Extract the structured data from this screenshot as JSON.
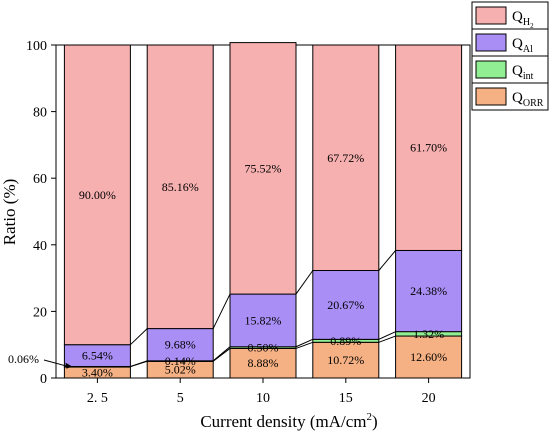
{
  "chart_data": {
    "type": "bar",
    "stacked": true,
    "categories": [
      "2. 5",
      "5",
      "10",
      "15",
      "20"
    ],
    "series": [
      {
        "key": "orr",
        "name_main": "Q",
        "name_sub": "ORR",
        "color": "#F5B183",
        "values": [
          3.4,
          5.02,
          8.88,
          10.72,
          12.6
        ],
        "labels": [
          "3.40%",
          "5.02%",
          "8.88%",
          "10.72%",
          "12.60%"
        ]
      },
      {
        "key": "int",
        "name_main": "Q",
        "name_sub": "int",
        "color": "#92EE92",
        "values": [
          0.06,
          0.14,
          0.5,
          0.89,
          1.32
        ],
        "labels": [
          "",
          "0.14%",
          "0.50%",
          "0.89%",
          "1.32%"
        ]
      },
      {
        "key": "al",
        "name_main": "Q",
        "name_sub": "Al",
        "color": "#A98FF5",
        "values": [
          6.54,
          9.68,
          15.82,
          20.67,
          24.38
        ],
        "labels": [
          "6.54%",
          "9.68%",
          "15.82%",
          "20.67%",
          "24.38%"
        ]
      },
      {
        "key": "h2",
        "name_main": "Q",
        "name_sub": "H",
        "name_subsub": "2",
        "color": "#F7B0B0",
        "values": [
          90.0,
          85.16,
          75.52,
          67.72,
          61.7
        ],
        "labels": [
          "90.00%",
          "85.16%",
          "75.52%",
          "67.72%",
          "61.70%"
        ]
      }
    ],
    "legend_order": [
      "h2",
      "al",
      "int",
      "orr"
    ],
    "legend_position": "top-right",
    "callout": {
      "text": "0.06%",
      "category_index": 0,
      "series": "int"
    },
    "xlabel_main": "Current density (mA/cm",
    "xlabel_sup": "2",
    "xlabel_end": ")",
    "ylabel": "Ratio (%)",
    "ylim": [
      0,
      100
    ],
    "yticks": [
      0,
      20,
      40,
      60,
      80,
      100
    ],
    "connectors": true
  }
}
